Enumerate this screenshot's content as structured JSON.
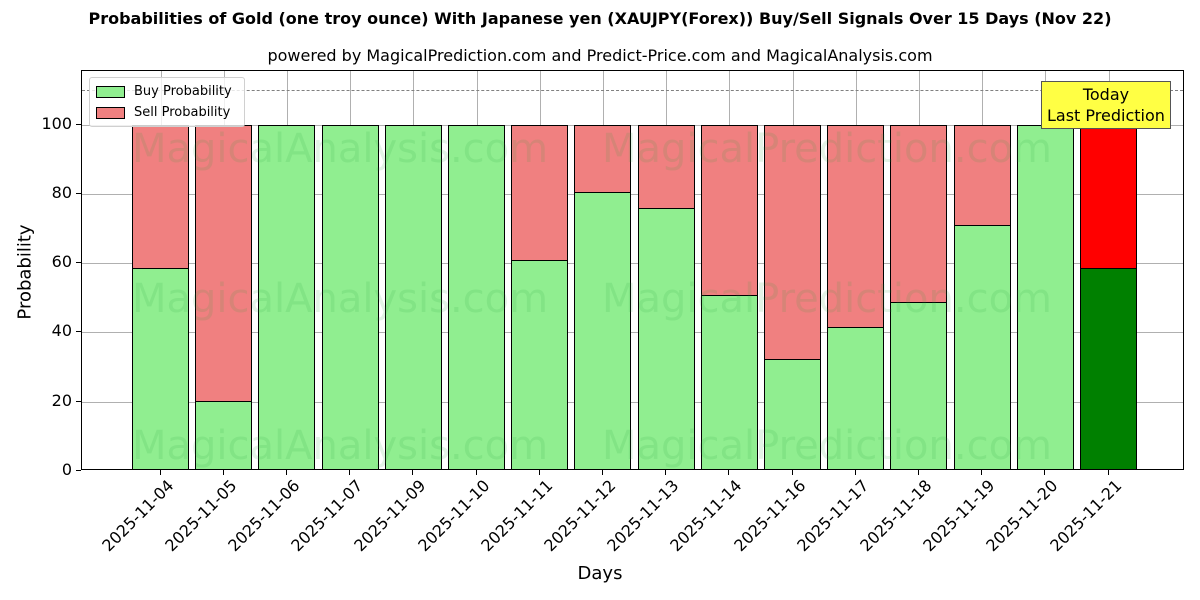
{
  "header": {
    "title": "Probabilities of Gold (one troy ounce) With Japanese yen (XAUJPY(Forex)) Buy/Sell Signals Over 15 Days (Nov 22)",
    "subtitle": "powered by MagicalPrediction.com and Predict-Price.com and MagicalAnalysis.com"
  },
  "legend": {
    "buy_label": "Buy Probability",
    "sell_label": "Sell Probability"
  },
  "annotation": {
    "line1": "Today",
    "line2": "Last Prediction"
  },
  "watermarks": [
    "MagicalAnalysis.com",
    "MagicalPrediction.com"
  ],
  "colors": {
    "buy": "#90ee90",
    "sell": "#f08080",
    "today_buy": "#008000",
    "today_sell": "#ff0000",
    "annotation_bg": "#ffff44"
  },
  "chart_data": {
    "type": "bar",
    "stacked": true,
    "title": "Probabilities of Gold (one troy ounce) With Japanese yen (XAUJPY(Forex)) Buy/Sell Signals Over 15 Days (Nov 22)",
    "subtitle": "powered by MagicalPrediction.com and Predict-Price.com and MagicalAnalysis.com",
    "xlabel": "Days",
    "ylabel": "Probability",
    "ylim": [
      0,
      115.5
    ],
    "yticks": [
      0,
      20,
      40,
      60,
      80,
      100
    ],
    "reference_line": 110,
    "grid": true,
    "legend_position": "upper left",
    "categories": [
      "2025-11-04",
      "2025-11-05",
      "2025-11-06",
      "2025-11-07",
      "2025-11-09",
      "2025-11-10",
      "2025-11-11",
      "2025-11-12",
      "2025-11-13",
      "2025-11-14",
      "2025-11-16",
      "2025-11-17",
      "2025-11-18",
      "2025-11-19",
      "2025-11-20",
      "2025-11-21"
    ],
    "series": [
      {
        "name": "Buy Probability",
        "values": [
          58.7,
          20.2,
          100,
          100,
          100,
          100,
          61.0,
          80.6,
          76.0,
          50.9,
          32.4,
          41.6,
          48.8,
          71.1,
          100,
          58.7
        ]
      },
      {
        "name": "Sell Probability",
        "values": [
          41.3,
          79.8,
          0,
          0,
          0,
          0,
          39.0,
          19.4,
          24.0,
          49.1,
          67.6,
          58.4,
          51.2,
          28.9,
          0,
          41.3
        ]
      }
    ],
    "annotation": "Today\nLast Prediction"
  }
}
